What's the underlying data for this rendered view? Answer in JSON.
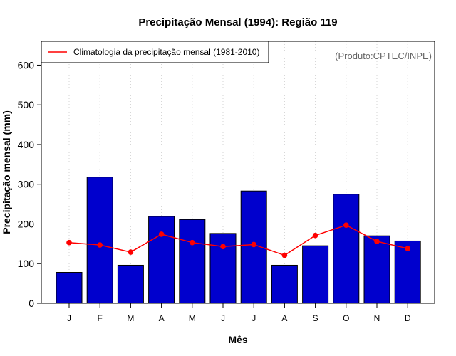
{
  "chart_data": {
    "type": "bar",
    "title": "Precipitação Mensal (1994): Região 119",
    "xlabel": "Mês",
    "ylabel": "Precipitação mensal (mm)",
    "ylim": [
      0,
      660
    ],
    "yticks": [
      0,
      100,
      200,
      300,
      400,
      500,
      600
    ],
    "categories": [
      "J",
      "F",
      "M",
      "A",
      "M",
      "J",
      "J",
      "A",
      "S",
      "O",
      "N",
      "D"
    ],
    "series": [
      {
        "name": "Precipitação mensal (1994)",
        "type": "bar",
        "color": "#0000cd",
        "values": [
          78,
          318,
          96,
          219,
          211,
          176,
          283,
          96,
          145,
          275,
          170,
          157
        ]
      },
      {
        "name": "Climatologia da precipitação mensal (1981-2010)",
        "type": "line",
        "color": "#ff0000",
        "values": [
          153,
          147,
          129,
          174,
          153,
          143,
          148,
          121,
          171,
          197,
          156,
          138
        ]
      }
    ],
    "legend": {
      "position": "top-left",
      "entries": [
        "Climatologia da precipitação mensal (1981-2010)"
      ]
    },
    "annotation": "(Produto:CPTEC/INPE)",
    "grid": "vertical dotted"
  }
}
